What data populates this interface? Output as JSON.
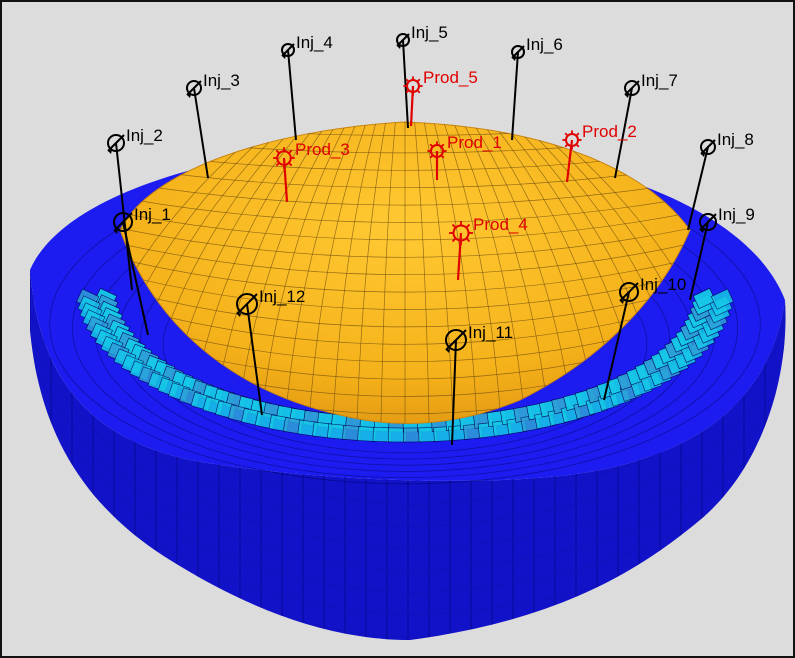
{
  "colors": {
    "background": "#dcdcdc",
    "frame": "#111111",
    "cap": "#f5b21a",
    "cap_edge": "#c98410",
    "cap_grid": "#6b4a10",
    "grid_blue": "#1c1cf0",
    "grid_blue_dark": "#1010b8",
    "grid_blue_side": "#1212c8",
    "grid_line": "#000050",
    "ring_cyan": "#16c8e8",
    "ring_teal": "#2ea0d8",
    "ring_green": "#48d848",
    "ring_yellow": "#d8e830",
    "injector": "#000000",
    "producer": "#e00000"
  },
  "wells": {
    "injectors": [
      {
        "id": "Inj_1",
        "label": "Inj_1"
      },
      {
        "id": "Inj_2",
        "label": "Inj_2"
      },
      {
        "id": "Inj_3",
        "label": "Inj_3"
      },
      {
        "id": "Inj_4",
        "label": "Inj_4"
      },
      {
        "id": "Inj_5",
        "label": "Inj_5"
      },
      {
        "id": "Inj_6",
        "label": "Inj_6"
      },
      {
        "id": "Inj_7",
        "label": "Inj_7"
      },
      {
        "id": "Inj_8",
        "label": "Inj_8"
      },
      {
        "id": "Inj_9",
        "label": "Inj_9"
      },
      {
        "id": "Inj_10",
        "label": "Inj_10"
      },
      {
        "id": "Inj_11",
        "label": "Inj_11"
      },
      {
        "id": "Inj_12",
        "label": "Inj_12"
      }
    ],
    "producers": [
      {
        "id": "Prod_1",
        "label": "Prod_1"
      },
      {
        "id": "Prod_2",
        "label": "Prod_2"
      },
      {
        "id": "Prod_3",
        "label": "Prod_3"
      },
      {
        "id": "Prod_4",
        "label": "Prod_4"
      },
      {
        "id": "Prod_5",
        "label": "Prod_5"
      }
    ]
  },
  "icons": {
    "injector": "injector-well-icon",
    "producer": "producer-well-icon"
  }
}
